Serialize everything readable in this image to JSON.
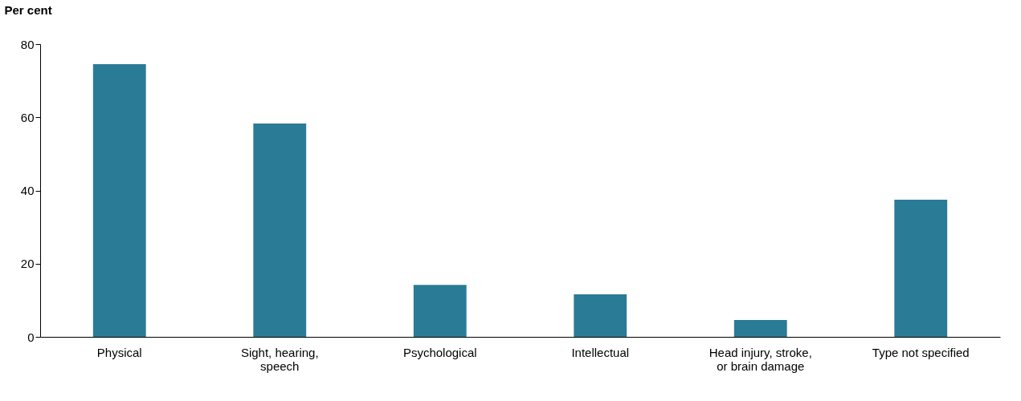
{
  "chart_data": {
    "type": "bar",
    "ylabel": "Per cent",
    "categories": [
      "Physical",
      "Sight, hearing, speech",
      "Psychological",
      "Intellectual",
      "Head injury, stroke, or brain damage",
      "Type not specified"
    ],
    "values": [
      74.5,
      58.3,
      14.2,
      11.6,
      4.6,
      37.5
    ],
    "color": "#2a7b96",
    "ylim": [
      0,
      80
    ],
    "yticks": [
      0,
      20,
      40,
      60,
      80
    ],
    "grid": false
  }
}
